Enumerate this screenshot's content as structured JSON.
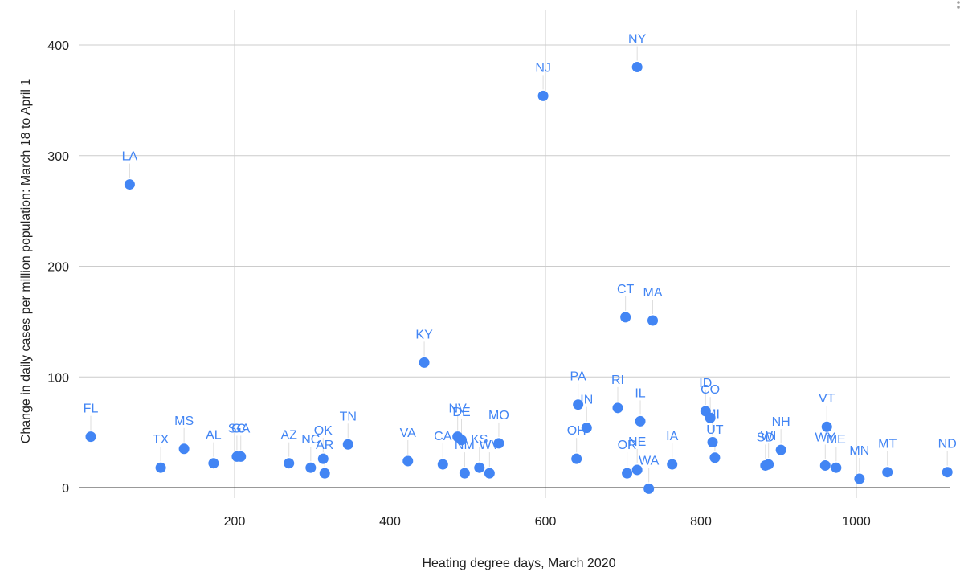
{
  "chart_data": {
    "type": "scatter",
    "title": "",
    "xlabel": "Heating degree days, March 2020",
    "ylabel": "Change in daily cases per million population: March 18 to April 1",
    "xlim": [
      0,
      1120
    ],
    "ylim": [
      -5,
      425
    ],
    "x_ticks": [
      200,
      400,
      600,
      800,
      1000
    ],
    "y_ticks": [
      0,
      100,
      200,
      300,
      400
    ],
    "grid": true,
    "point_color": "#4285f4",
    "label_color": "#4285f4",
    "grid_color": "#cccccc",
    "series": [
      {
        "points": [
          {
            "label": "FL",
            "x": 15,
            "y": 46
          },
          {
            "label": "LA",
            "x": 65,
            "y": 274
          },
          {
            "label": "TX",
            "x": 105,
            "y": 18
          },
          {
            "label": "MS",
            "x": 135,
            "y": 35
          },
          {
            "label": "AL",
            "x": 173,
            "y": 22
          },
          {
            "label": "SC",
            "x": 203,
            "y": 28
          },
          {
            "label": "GA",
            "x": 208,
            "y": 28
          },
          {
            "label": "AZ",
            "x": 270,
            "y": 22
          },
          {
            "label": "NC",
            "x": 298,
            "y": 18
          },
          {
            "label": "OK",
            "x": 314,
            "y": 26
          },
          {
            "label": "AR",
            "x": 316,
            "y": 13
          },
          {
            "label": "TN",
            "x": 346,
            "y": 39
          },
          {
            "label": "VA",
            "x": 423,
            "y": 24
          },
          {
            "label": "KY",
            "x": 444,
            "y": 113
          },
          {
            "label": "CA",
            "x": 468,
            "y": 21
          },
          {
            "label": "NV",
            "x": 487,
            "y": 46
          },
          {
            "label": "DE",
            "x": 492,
            "y": 43
          },
          {
            "label": "NM",
            "x": 496,
            "y": 13
          },
          {
            "label": "KS",
            "x": 515,
            "y": 18
          },
          {
            "label": "WV",
            "x": 528,
            "y": 13
          },
          {
            "label": "MO",
            "x": 540,
            "y": 40
          },
          {
            "label": "NJ",
            "x": 597,
            "y": 354
          },
          {
            "label": "OH",
            "x": 640,
            "y": 26
          },
          {
            "label": "PA",
            "x": 642,
            "y": 75
          },
          {
            "label": "IN",
            "x": 653,
            "y": 54
          },
          {
            "label": "RI",
            "x": 693,
            "y": 72
          },
          {
            "label": "CT",
            "x": 703,
            "y": 154
          },
          {
            "label": "OR",
            "x": 705,
            "y": 13
          },
          {
            "label": "NE",
            "x": 718,
            "y": 16
          },
          {
            "label": "NY",
            "x": 718,
            "y": 380
          },
          {
            "label": "IL",
            "x": 722,
            "y": 60
          },
          {
            "label": "WA",
            "x": 733,
            "y": -1
          },
          {
            "label": "MA",
            "x": 738,
            "y": 151
          },
          {
            "label": "IA",
            "x": 763,
            "y": 21
          },
          {
            "label": "ID",
            "x": 806,
            "y": 69
          },
          {
            "label": "CO",
            "x": 812,
            "y": 63
          },
          {
            "label": "MI",
            "x": 815,
            "y": 41
          },
          {
            "label": "UT",
            "x": 818,
            "y": 27
          },
          {
            "label": "SD",
            "x": 883,
            "y": 20
          },
          {
            "label": "WI",
            "x": 887,
            "y": 21
          },
          {
            "label": "NH",
            "x": 903,
            "y": 34
          },
          {
            "label": "WY",
            "x": 960,
            "y": 20
          },
          {
            "label": "VT",
            "x": 962,
            "y": 55
          },
          {
            "label": "ME",
            "x": 974,
            "y": 18
          },
          {
            "label": "MN",
            "x": 1004,
            "y": 8
          },
          {
            "label": "MT",
            "x": 1040,
            "y": 14
          },
          {
            "label": "ND",
            "x": 1117,
            "y": 14
          }
        ]
      }
    ]
  }
}
